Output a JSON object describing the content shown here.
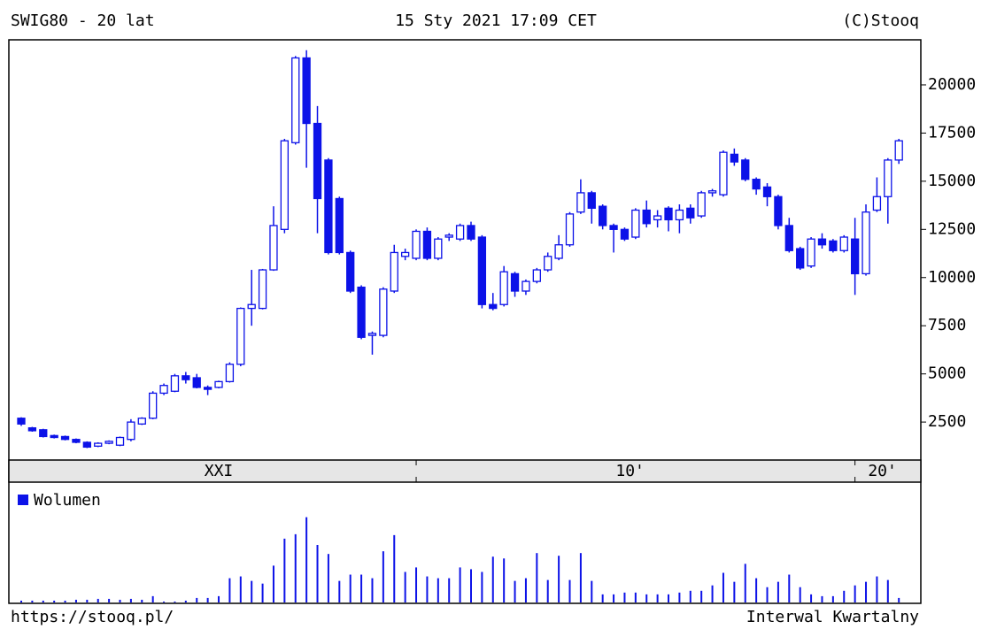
{
  "chart_data": {
    "type": "candlestick",
    "title": "SWIG80 - 20 lat",
    "timestamp": "15 Sty 2021 17:09 CET",
    "source": "(C)Stooq",
    "footer_left": "https://stooq.pl/",
    "footer_right": "Interwal Kwartalny",
    "color": "#0c12e8",
    "open": [
      2700,
      2200,
      2100,
      1800,
      1750,
      1600,
      1450,
      1250,
      1400,
      1300,
      1600,
      2400,
      2700,
      4000,
      4100,
      4900,
      4800,
      4300,
      4300,
      4600,
      5500,
      8400,
      8400,
      10400,
      12500,
      17000,
      21400,
      18000,
      16100,
      14100,
      11300,
      9500,
      7000,
      7000,
      9300,
      11100,
      11000,
      12400,
      11000,
      12100,
      12000,
      12700,
      12100,
      8600,
      8600,
      10200,
      9300,
      9800,
      10400,
      11000,
      11700,
      13400,
      14400,
      13700,
      12700,
      12500,
      12100,
      13500,
      13000,
      13600,
      13000,
      13600,
      13200,
      14400,
      14300,
      16400,
      16100,
      15100,
      14700,
      14200,
      12700,
      11500,
      10600,
      12000,
      11900,
      11400,
      12000,
      10200,
      13500,
      14200,
      16100
    ],
    "high": [
      2750,
      2250,
      2150,
      1850,
      1800,
      1650,
      1500,
      1450,
      1550,
      1750,
      2650,
      2750,
      4100,
      4500,
      5000,
      5100,
      5000,
      4400,
      4650,
      5600,
      8450,
      10400,
      10450,
      13700,
      17200,
      21500,
      21800,
      18900,
      16200,
      14200,
      11400,
      9600,
      7200,
      9500,
      11700,
      11500,
      12500,
      12600,
      12100,
      12300,
      12800,
      12900,
      12200,
      9200,
      10600,
      10300,
      9900,
      10500,
      11300,
      12200,
      13400,
      15100,
      14500,
      13800,
      12800,
      12600,
      13600,
      14000,
      13500,
      13700,
      13800,
      13800,
      14500,
      14600,
      16600,
      16700,
      16200,
      15200,
      14900,
      14300,
      13100,
      11600,
      12100,
      12300,
      12000,
      12200,
      13100,
      13800,
      15200,
      16200,
      17200
    ],
    "low": [
      2300,
      2000,
      1700,
      1650,
      1550,
      1400,
      1150,
      1200,
      1350,
      1250,
      1500,
      2350,
      2650,
      3900,
      4050,
      4500,
      4250,
      3900,
      4250,
      4550,
      5400,
      7500,
      8350,
      10350,
      12300,
      16900,
      15700,
      12300,
      11200,
      11200,
      9200,
      6800,
      6000,
      6900,
      9200,
      10900,
      10900,
      10900,
      10900,
      11900,
      11900,
      11900,
      8400,
      8300,
      8500,
      9000,
      9100,
      9700,
      10300,
      10900,
      11600,
      13300,
      12800,
      12500,
      11300,
      11900,
      12000,
      12600,
      12600,
      12400,
      12300,
      12800,
      13100,
      14200,
      14200,
      15800,
      15000,
      14300,
      13700,
      12500,
      11300,
      10400,
      10500,
      11500,
      11300,
      11300,
      9100,
      10100,
      13400,
      12800,
      15900
    ],
    "close": [
      2400,
      2050,
      1750,
      1700,
      1600,
      1450,
      1200,
      1400,
      1500,
      1700,
      2500,
      2700,
      4000,
      4400,
      4900,
      4700,
      4300,
      4200,
      4600,
      5500,
      8400,
      8600,
      10400,
      12700,
      17100,
      21400,
      18000,
      14100,
      11300,
      11300,
      9300,
      6900,
      7100,
      9400,
      11300,
      11300,
      12400,
      11000,
      12000,
      12200,
      12700,
      12000,
      8600,
      8400,
      10300,
      9300,
      9800,
      10400,
      11100,
      11700,
      13300,
      14400,
      13600,
      12700,
      12500,
      12000,
      13500,
      12800,
      13200,
      13000,
      13500,
      13100,
      14400,
      14500,
      16500,
      16000,
      15100,
      14600,
      14200,
      12700,
      11400,
      10500,
      12000,
      11700,
      11400,
      12100,
      10200,
      13400,
      14200,
      16100,
      17100
    ],
    "ylim": [
      530,
      22340
    ],
    "yticks": [
      2500,
      5000,
      7500,
      10000,
      12500,
      15000,
      17500,
      20000
    ],
    "xticks": [
      36,
      76
    ],
    "period_labels": [
      {
        "value": 18,
        "label": "XXI"
      },
      {
        "value": 55.5,
        "label": "10'"
      },
      {
        "value": 78.5,
        "label": "20'"
      }
    ],
    "volume": {
      "name": "Wolumen",
      "values": [
        3,
        3,
        3,
        3,
        3,
        4,
        4,
        5,
        5,
        4,
        5,
        4,
        8,
        2,
        2,
        3,
        6,
        6,
        8,
        28,
        30,
        25,
        22,
        42,
        72,
        77,
        96,
        65,
        55,
        25,
        32,
        32,
        28,
        58,
        76,
        35,
        40,
        30,
        28,
        28,
        40,
        38,
        35,
        52,
        50,
        25,
        28,
        56,
        26,
        53,
        26,
        56,
        25,
        10,
        10,
        12,
        12,
        10,
        10,
        10,
        12,
        14,
        14,
        20,
        34,
        24,
        44,
        28,
        18,
        24,
        32,
        18,
        10,
        8,
        8,
        14,
        20,
        24,
        30,
        26,
        6
      ]
    },
    "vlim": [
      0,
      135
    ]
  }
}
